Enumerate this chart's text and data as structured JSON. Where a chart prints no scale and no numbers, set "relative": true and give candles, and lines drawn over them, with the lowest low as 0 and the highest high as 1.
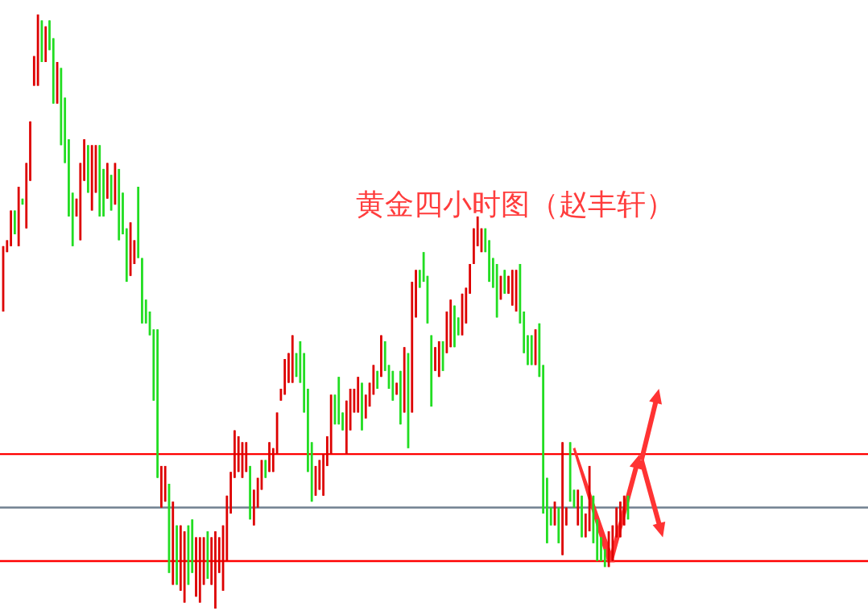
{
  "chart_data": {
    "type": "candlestick",
    "relative": true,
    "title": "黄金四小时图（赵丰轩）",
    "colors": [
      "#dd0000",
      "#dd0000",
      "#dd0000",
      "#22dd22",
      "#dd0000",
      "#22dd22",
      "#dd0000",
      "#dd0000",
      "#dd0000",
      "#dd0000",
      "#22dd22",
      "#dd0000",
      "#22dd22",
      "#22dd22",
      "#dd0000",
      "#22dd22",
      "#22dd22",
      "#22dd22",
      "#22dd22",
      "#dd0000",
      "#dd0000",
      "#dd0000",
      "#22dd22",
      "#dd0000",
      "#dd0000",
      "#22dd22",
      "#22dd22",
      "#dd0000",
      "#22dd22",
      "#dd0000",
      "#22dd22",
      "#22dd22",
      "#22dd22",
      "#dd0000",
      "#dd0000",
      "#22dd22",
      "#22dd22",
      "#22dd22",
      "#22dd22",
      "#22dd22",
      "#22dd22",
      "#dd0000",
      "#dd0000",
      "#22dd22",
      "#dd0000",
      "#22dd22",
      "#dd0000",
      "#dd0000",
      "#22dd22",
      "#22dd22",
      "#dd0000",
      "#dd0000",
      "#dd0000",
      "#22dd22",
      "#dd0000",
      "#dd0000",
      "#dd0000",
      "#dd0000",
      "#dd0000",
      "#dd0000",
      "#dd0000",
      "#dd0000",
      "#dd0000",
      "#dd0000",
      "#22dd22",
      "#dd0000",
      "#dd0000",
      "#dd0000",
      "#22dd22",
      "#dd0000",
      "#dd0000",
      "#dd0000",
      "#dd0000",
      "#dd0000",
      "#dd0000",
      "#dd0000",
      "#22dd22",
      "#22dd22",
      "#22dd22",
      "#22dd22",
      "#22dd22",
      "#dd0000",
      "#dd0000",
      "#dd0000",
      "#dd0000",
      "#dd0000",
      "#22dd22",
      "#22dd22",
      "#22dd22",
      "#dd0000",
      "#dd0000",
      "#dd0000",
      "#dd0000",
      "#22dd22",
      "#dd0000",
      "#dd0000",
      "#dd0000",
      "#22dd22",
      "#dd0000",
      "#22dd22",
      "#22dd22",
      "#22dd22",
      "#dd0000",
      "#22dd22",
      "#dd0000",
      "#22dd22",
      "#dd0000",
      "#dd0000",
      "#22dd22",
      "#22dd22",
      "#22dd22",
      "#22dd22",
      "#dd0000",
      "#dd0000",
      "#22dd22",
      "#dd0000",
      "#dd0000",
      "#22dd22",
      "#22dd22",
      "#dd0000",
      "#dd0000",
      "#dd0000",
      "#dd0000",
      "#dd0000",
      "#dd0000",
      "#22dd22",
      "#22dd22",
      "#22dd22",
      "#22dd22",
      "#dd0000",
      "#22dd22",
      "#dd0000",
      "#dd0000",
      "#dd0000",
      "#22dd22",
      "#22dd22",
      "#22dd22",
      "#22dd22",
      "#dd0000",
      "#22dd22",
      "#22dd22",
      "#22dd22",
      "#22dd22",
      "#dd0000",
      "#22dd22",
      "#dd0000",
      "#dd0000",
      "#22dd22",
      "#22dd22",
      "#dd0000",
      "#22dd22",
      "#dd0000",
      "#dd0000",
      "#22dd22",
      "#22dd22",
      "#22dd22",
      "#22dd22",
      "#dd0000",
      "#dd0000",
      "#dd0000",
      "#dd0000",
      "#dd0000",
      "#22dd22"
    ],
    "categories": [
      null,
      null,
      null,
      null,
      null,
      null,
      null,
      null,
      null,
      null,
      null,
      null,
      null,
      null,
      null,
      null,
      null,
      null,
      null,
      null,
      null,
      null,
      null,
      null,
      null,
      null,
      null,
      null,
      null,
      null,
      null,
      null,
      null,
      null,
      null,
      null,
      null,
      null,
      null,
      null,
      null,
      null,
      null,
      null,
      null,
      null,
      null,
      null,
      null,
      null,
      null,
      null,
      null,
      null,
      null,
      null,
      null,
      null,
      null,
      null,
      null,
      null,
      null,
      null,
      null,
      null,
      null,
      null,
      null,
      null,
      null,
      null,
      null,
      null,
      null,
      null,
      null,
      null,
      null,
      null,
      null,
      null,
      null,
      null,
      null,
      null,
      null,
      null,
      null,
      null,
      null,
      null,
      null,
      null,
      null,
      null,
      null,
      null,
      null,
      null,
      null,
      null,
      null,
      null,
      null,
      null,
      null,
      null,
      null,
      null,
      null,
      null,
      null,
      null,
      null,
      null,
      null,
      null,
      null,
      null,
      null,
      null,
      null,
      null,
      null,
      null,
      null,
      null,
      null,
      null,
      null,
      null,
      null,
      null,
      null,
      null,
      null,
      null,
      null,
      null,
      null,
      null,
      null,
      null,
      null,
      null,
      null,
      null,
      null,
      null,
      null,
      null,
      null,
      null,
      null,
      null,
      null,
      null,
      null,
      null,
      null,
      null,
      null
    ],
    "ohlc": [
      [
        0.61,
        0.61,
        0.5,
        0.5
      ],
      [
        0.62,
        0.62,
        0.6,
        0.6
      ],
      [
        0.67,
        0.67,
        0.61,
        0.61
      ],
      [
        0.63,
        0.67,
        0.63,
        0.67
      ],
      [
        0.71,
        0.71,
        0.61,
        0.61
      ],
      [
        0.68,
        0.69,
        0.68,
        0.69
      ],
      [
        0.75,
        0.75,
        0.64,
        0.64
      ],
      [
        0.82,
        0.82,
        0.72,
        0.72
      ],
      [
        0.93,
        0.93,
        0.88,
        0.88
      ],
      [
        1.0,
        1.0,
        0.88,
        0.88
      ],
      [
        0.92,
        0.99,
        0.92,
        0.99
      ],
      [
        0.98,
        0.98,
        0.92,
        0.92
      ],
      [
        0.94,
        0.99,
        0.94,
        0.99
      ],
      [
        0.85,
        0.96,
        0.85,
        0.96
      ],
      [
        0.92,
        0.92,
        0.85,
        0.85
      ],
      [
        0.78,
        0.91,
        0.78,
        0.91
      ],
      [
        0.75,
        0.86,
        0.75,
        0.86
      ],
      [
        0.66,
        0.79,
        0.66,
        0.79
      ],
      [
        0.61,
        0.7,
        0.61,
        0.7
      ],
      [
        0.69,
        0.69,
        0.66,
        0.66
      ],
      [
        0.75,
        0.75,
        0.62,
        0.62
      ],
      [
        0.79,
        0.79,
        0.72,
        0.72
      ],
      [
        0.7,
        0.78,
        0.7,
        0.78
      ],
      [
        0.78,
        0.78,
        0.67,
        0.67
      ],
      [
        0.78,
        0.78,
        0.7,
        0.7
      ],
      [
        0.66,
        0.78,
        0.66,
        0.78
      ],
      [
        0.66,
        0.74,
        0.66,
        0.74
      ],
      [
        0.75,
        0.75,
        0.69,
        0.69
      ],
      [
        0.67,
        0.73,
        0.67,
        0.73
      ],
      [
        0.75,
        0.75,
        0.68,
        0.68
      ],
      [
        0.62,
        0.74,
        0.62,
        0.74
      ],
      [
        0.63,
        0.7,
        0.63,
        0.7
      ],
      [
        0.55,
        0.64,
        0.55,
        0.64
      ],
      [
        0.65,
        0.65,
        0.56,
        0.56
      ],
      [
        0.62,
        0.62,
        0.58,
        0.58
      ],
      [
        0.59,
        0.71,
        0.59,
        0.71
      ],
      [
        0.48,
        0.59,
        0.48,
        0.59
      ],
      [
        0.48,
        0.52,
        0.48,
        0.52
      ],
      [
        0.46,
        0.5,
        0.46,
        0.5
      ],
      [
        0.35,
        0.47,
        0.35,
        0.47
      ],
      [
        0.22,
        0.47,
        0.22,
        0.47
      ],
      [
        0.24,
        0.24,
        0.17,
        0.17
      ],
      [
        0.24,
        0.24,
        0.18,
        0.18
      ],
      [
        0.06,
        0.21,
        0.06,
        0.21
      ],
      [
        0.18,
        0.18,
        0.04,
        0.04
      ],
      [
        0.04,
        0.14,
        0.04,
        0.14
      ],
      [
        0.14,
        0.14,
        0.03,
        0.03
      ],
      [
        0.13,
        0.13,
        0.01,
        0.01
      ],
      [
        0.04,
        0.14,
        0.04,
        0.14
      ],
      [
        0.06,
        0.15,
        0.06,
        0.15
      ],
      [
        0.12,
        0.12,
        0.02,
        0.02
      ],
      [
        0.12,
        0.12,
        0.01,
        0.01
      ],
      [
        0.12,
        0.12,
        0.04,
        0.04
      ],
      [
        0.05,
        0.13,
        0.05,
        0.13
      ],
      [
        0.12,
        0.12,
        0.04,
        0.04
      ],
      [
        0.13,
        0.13,
        0.0,
        0.0
      ],
      [
        0.12,
        0.12,
        0.06,
        0.06
      ],
      [
        0.14,
        0.14,
        0.03,
        0.03
      ],
      [
        0.19,
        0.19,
        0.08,
        0.08
      ],
      [
        0.23,
        0.23,
        0.16,
        0.16
      ],
      [
        0.3,
        0.3,
        0.22,
        0.22
      ],
      [
        0.29,
        0.29,
        0.23,
        0.23
      ],
      [
        0.28,
        0.28,
        0.22,
        0.22
      ],
      [
        0.28,
        0.28,
        0.23,
        0.23
      ],
      [
        0.15,
        0.24,
        0.15,
        0.24
      ],
      [
        0.2,
        0.2,
        0.14,
        0.14
      ],
      [
        0.22,
        0.22,
        0.17,
        0.17
      ],
      [
        0.25,
        0.25,
        0.2,
        0.2
      ],
      [
        0.22,
        0.25,
        0.22,
        0.25
      ],
      [
        0.28,
        0.28,
        0.23,
        0.23
      ],
      [
        0.27,
        0.27,
        0.23,
        0.23
      ],
      [
        0.33,
        0.33,
        0.26,
        0.26
      ],
      [
        0.37,
        0.37,
        0.35,
        0.35
      ],
      [
        0.42,
        0.42,
        0.36,
        0.36
      ],
      [
        0.43,
        0.43,
        0.38,
        0.38
      ],
      [
        0.46,
        0.46,
        0.38,
        0.38
      ],
      [
        0.39,
        0.43,
        0.39,
        0.43
      ],
      [
        0.38,
        0.45,
        0.38,
        0.45
      ],
      [
        0.33,
        0.43,
        0.33,
        0.43
      ],
      [
        0.23,
        0.37,
        0.23,
        0.37
      ],
      [
        0.18,
        0.28,
        0.18,
        0.28
      ],
      [
        0.24,
        0.24,
        0.19,
        0.19
      ],
      [
        0.25,
        0.25,
        0.2,
        0.2
      ],
      [
        0.26,
        0.26,
        0.19,
        0.19
      ],
      [
        0.29,
        0.29,
        0.24,
        0.24
      ],
      [
        0.36,
        0.36,
        0.26,
        0.26
      ],
      [
        0.31,
        0.36,
        0.31,
        0.36
      ],
      [
        0.31,
        0.39,
        0.31,
        0.39
      ],
      [
        0.3,
        0.33,
        0.3,
        0.33
      ],
      [
        0.35,
        0.35,
        0.26,
        0.26
      ],
      [
        0.37,
        0.37,
        0.3,
        0.3
      ],
      [
        0.37,
        0.37,
        0.33,
        0.33
      ],
      [
        0.39,
        0.39,
        0.33,
        0.33
      ],
      [
        0.3,
        0.38,
        0.3,
        0.38
      ],
      [
        0.36,
        0.36,
        0.32,
        0.32
      ],
      [
        0.38,
        0.38,
        0.34,
        0.34
      ],
      [
        0.41,
        0.41,
        0.36,
        0.36
      ],
      [
        0.37,
        0.4,
        0.37,
        0.4
      ],
      [
        0.46,
        0.46,
        0.39,
        0.39
      ],
      [
        0.4,
        0.45,
        0.4,
        0.45
      ],
      [
        0.37,
        0.41,
        0.37,
        0.41
      ],
      [
        0.35,
        0.4,
        0.35,
        0.4
      ],
      [
        0.38,
        0.38,
        0.36,
        0.36
      ],
      [
        0.31,
        0.4,
        0.31,
        0.4
      ],
      [
        0.44,
        0.44,
        0.33,
        0.33
      ],
      [
        0.27,
        0.43,
        0.27,
        0.43
      ],
      [
        0.55,
        0.55,
        0.33,
        0.33
      ],
      [
        0.57,
        0.57,
        0.49,
        0.49
      ],
      [
        0.54,
        0.57,
        0.54,
        0.57
      ],
      [
        0.55,
        0.6,
        0.55,
        0.6
      ],
      [
        0.48,
        0.56,
        0.48,
        0.56
      ],
      [
        0.34,
        0.46,
        0.34,
        0.46
      ],
      [
        0.44,
        0.44,
        0.4,
        0.4
      ],
      [
        0.45,
        0.45,
        0.39,
        0.39
      ],
      [
        0.4,
        0.45,
        0.4,
        0.45
      ],
      [
        0.5,
        0.5,
        0.43,
        0.43
      ],
      [
        0.52,
        0.52,
        0.44,
        0.44
      ],
      [
        0.44,
        0.51,
        0.44,
        0.51
      ],
      [
        0.46,
        0.49,
        0.46,
        0.49
      ],
      [
        0.53,
        0.53,
        0.46,
        0.46
      ],
      [
        0.54,
        0.54,
        0.48,
        0.48
      ],
      [
        0.58,
        0.58,
        0.53,
        0.53
      ],
      [
        0.64,
        0.64,
        0.58,
        0.58
      ],
      [
        0.66,
        0.66,
        0.61,
        0.61
      ],
      [
        0.64,
        0.64,
        0.6,
        0.6
      ],
      [
        0.6,
        0.64,
        0.6,
        0.64
      ],
      [
        0.55,
        0.62,
        0.55,
        0.62
      ],
      [
        0.54,
        0.59,
        0.54,
        0.59
      ],
      [
        0.49,
        0.58,
        0.49,
        0.58
      ],
      [
        0.56,
        0.56,
        0.52,
        0.52
      ],
      [
        0.53,
        0.57,
        0.53,
        0.57
      ],
      [
        0.56,
        0.56,
        0.53,
        0.53
      ],
      [
        0.57,
        0.57,
        0.51,
        0.51
      ],
      [
        0.57,
        0.57,
        0.5,
        0.5
      ],
      [
        0.48,
        0.58,
        0.48,
        0.58
      ],
      [
        0.43,
        0.5,
        0.43,
        0.5
      ],
      [
        0.41,
        0.46,
        0.41,
        0.46
      ],
      [
        0.41,
        0.46,
        0.41,
        0.46
      ],
      [
        0.47,
        0.47,
        0.41,
        0.41
      ],
      [
        0.39,
        0.48,
        0.39,
        0.48
      ],
      [
        0.16,
        0.41,
        0.16,
        0.41
      ],
      [
        0.11,
        0.22,
        0.11,
        0.22
      ],
      [
        0.14,
        0.17,
        0.14,
        0.17
      ],
      [
        0.18,
        0.18,
        0.14,
        0.14
      ],
      [
        0.11,
        0.17,
        0.11,
        0.17
      ],
      [
        0.28,
        0.28,
        0.09,
        0.09
      ],
      [
        0.17,
        0.17,
        0.14,
        0.14
      ],
      [
        0.18,
        0.28,
        0.18,
        0.28
      ],
      [
        0.17,
        0.2,
        0.17,
        0.2
      ],
      [
        0.2,
        0.2,
        0.14,
        0.14
      ],
      [
        0.12,
        0.19,
        0.12,
        0.19
      ],
      [
        0.16,
        0.16,
        0.12,
        0.12
      ],
      [
        0.24,
        0.24,
        0.13,
        0.13
      ],
      [
        0.11,
        0.19,
        0.11,
        0.19
      ],
      [
        0.08,
        0.15,
        0.08,
        0.15
      ],
      [
        0.08,
        0.12,
        0.08,
        0.12
      ],
      [
        0.07,
        0.1,
        0.07,
        0.1
      ],
      [
        0.13,
        0.13,
        0.07,
        0.07
      ],
      [
        0.14,
        0.14,
        0.08,
        0.08
      ],
      [
        0.17,
        0.17,
        0.12,
        0.12
      ],
      [
        0.18,
        0.18,
        0.12,
        0.12
      ],
      [
        0.19,
        0.19,
        0.14,
        0.14
      ],
      [
        0.15,
        0.19,
        0.15,
        0.19
      ]
    ],
    "ref_lines": [
      {
        "axis": "y",
        "value": 0.26,
        "color": "#ff0000"
      },
      {
        "axis": "y",
        "value": 0.17,
        "color": "#708090"
      },
      {
        "axis": "y",
        "value": 0.08,
        "color": "#ff0000"
      }
    ]
  }
}
